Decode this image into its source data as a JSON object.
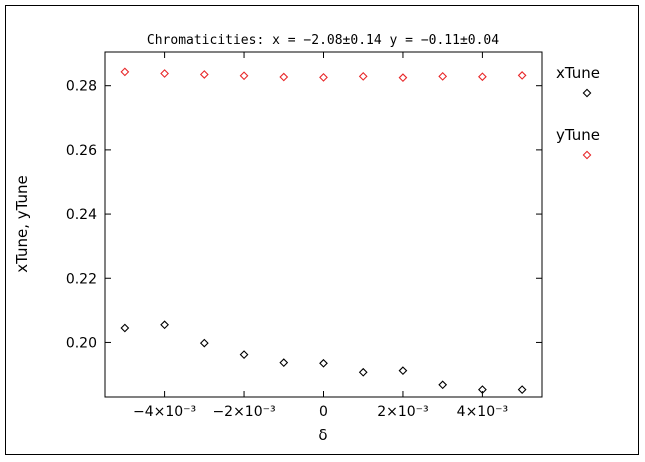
{
  "chart_data": {
    "type": "scatter",
    "title": "Chromaticities: x = −2.08±0.14 y = −0.11±0.04",
    "xlabel": "δ",
    "ylabel": "xTune, yTune",
    "xlim": [
      -0.0055,
      0.0055
    ],
    "ylim": [
      0.183,
      0.2905
    ],
    "grid": false,
    "legend": "right",
    "xticks": [
      {
        "value": -0.004,
        "label": "−4×10⁻³"
      },
      {
        "value": -0.002,
        "label": "−2×10⁻³"
      },
      {
        "value": 0,
        "label": "0"
      },
      {
        "value": 0.002,
        "label": "2×10⁻³"
      },
      {
        "value": 0.004,
        "label": "4×10⁻³"
      }
    ],
    "yticks": [
      {
        "value": 0.2,
        "label": "0.20"
      },
      {
        "value": 0.22,
        "label": "0.22"
      },
      {
        "value": 0.24,
        "label": "0.24"
      },
      {
        "value": 0.26,
        "label": "0.26"
      },
      {
        "value": 0.28,
        "label": "0.28"
      }
    ],
    "x": [
      -0.005,
      -0.004,
      -0.003,
      -0.002,
      -0.001,
      0,
      0.001,
      0.002,
      0.003,
      0.004,
      0.005
    ],
    "series": [
      {
        "name": "xTune",
        "color": "#000000",
        "marker": "diamond",
        "values": [
          0.2045,
          0.2055,
          0.1998,
          0.1962,
          0.1937,
          0.1935,
          0.1907,
          0.1912,
          0.1868,
          0.1853,
          0.1853
        ]
      },
      {
        "name": "yTune",
        "color": "#e8282a",
        "marker": "diamond",
        "values": [
          0.2843,
          0.2838,
          0.2835,
          0.2831,
          0.2827,
          0.2826,
          0.2829,
          0.2825,
          0.2829,
          0.2828,
          0.2832
        ]
      }
    ]
  }
}
